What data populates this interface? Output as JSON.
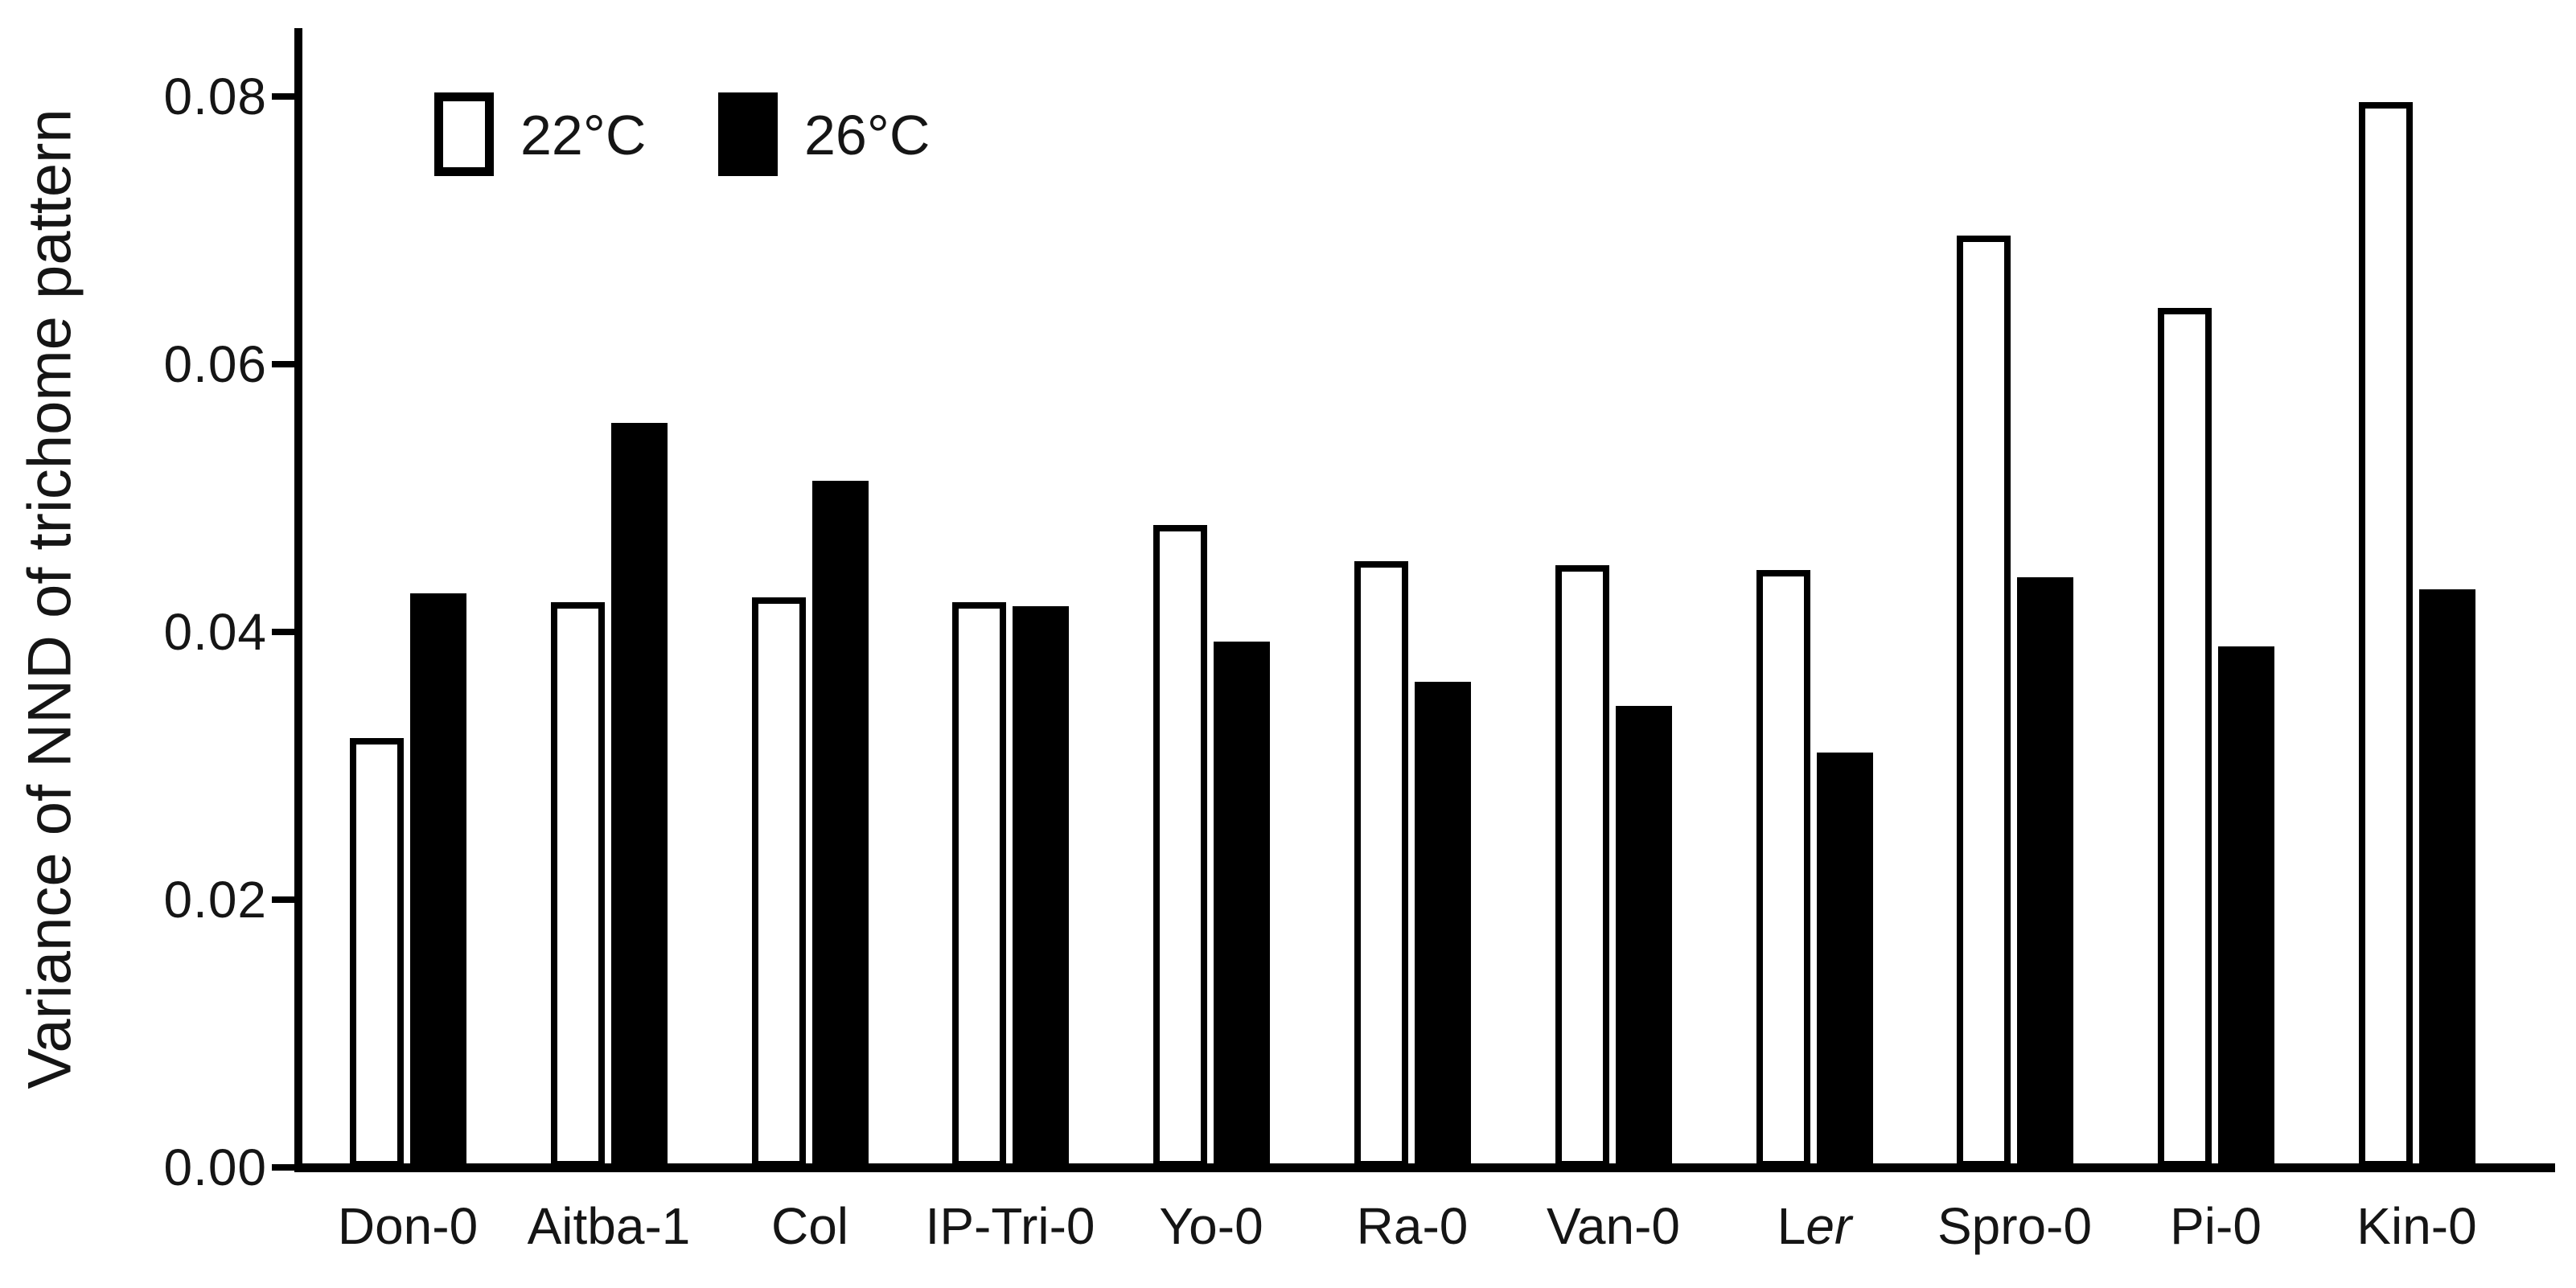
{
  "figure": {
    "background_color": "#ffffff",
    "ink_color": "#000000"
  },
  "chart_data": {
    "type": "bar",
    "title": "",
    "xlabel": "",
    "ylabel": "Variance of NND of trichome pattern",
    "ylim": [
      0,
      0.08
    ],
    "yticks": [
      0.0,
      0.02,
      0.04,
      0.06,
      0.08
    ],
    "ytick_labels": [
      "0.00",
      "0.02",
      "0.04",
      "0.06",
      "0.08"
    ],
    "grid": false,
    "legend_position": "top-left-inside",
    "bar_style": "grouped pairs, open (white) vs filled (black)",
    "categories": [
      "Don-0",
      "Aitba-1",
      "Col",
      "IP-Tri-0",
      "Yo-0",
      "Ra-0",
      "Van-0",
      "Ler",
      "Spro-0",
      "Pi-0",
      "Kin-0"
    ],
    "category_italic_parts": {
      "Ler": {
        "roman": "L",
        "italic": "er"
      }
    },
    "series": [
      {
        "name": "22°C",
        "fill": "#ffffff",
        "border": "#000000",
        "values": [
          0.0321,
          0.0422,
          0.0426,
          0.0422,
          0.048,
          0.0453,
          0.045,
          0.0446,
          0.0696,
          0.0642,
          0.0796
        ]
      },
      {
        "name": "26°C",
        "fill": "#000000",
        "border": "#000000",
        "values": [
          0.0429,
          0.0556,
          0.0513,
          0.0419,
          0.0393,
          0.0363,
          0.0345,
          0.031,
          0.0441,
          0.0389,
          0.0432
        ]
      }
    ]
  }
}
